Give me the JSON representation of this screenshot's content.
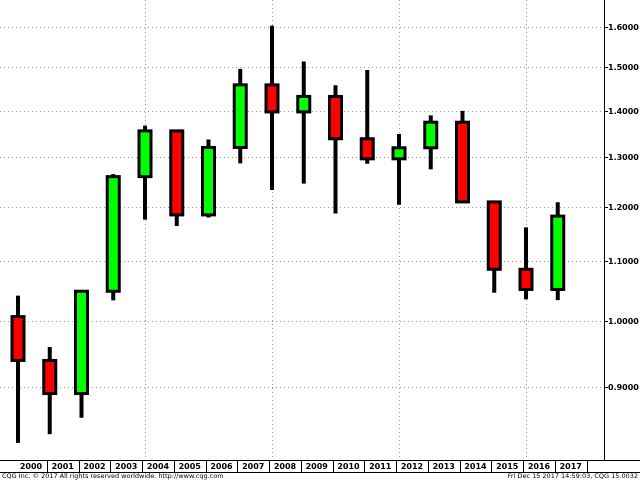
{
  "chart_data": {
    "type": "candlestick",
    "categories": [
      "2000",
      "2001",
      "2002",
      "2003",
      "2004",
      "2005",
      "2006",
      "2007",
      "2008",
      "2009",
      "2010",
      "2011",
      "2012",
      "2013",
      "2014",
      "2015",
      "2016",
      "2017"
    ],
    "open": [
      1.007,
      0.9388,
      0.8904,
      1.0487,
      1.2597,
      1.3554,
      1.1849,
      1.3199,
      1.4589,
      1.3971,
      1.4321,
      1.3384,
      1.2961,
      1.3192,
      1.3743,
      1.2098,
      1.0862,
      1.0517
    ],
    "high": [
      1.0414,
      0.9593,
      1.0486,
      1.2648,
      1.3667,
      1.3583,
      1.3367,
      1.4967,
      1.6038,
      1.5145,
      1.4579,
      1.494,
      1.3487,
      1.3895,
      1.3995,
      1.2105,
      1.1616,
      1.2092
    ],
    "low": [
      0.8228,
      0.8344,
      0.8565,
      1.0335,
      1.176,
      1.164,
      1.18,
      1.2868,
      1.233,
      1.2457,
      1.1876,
      1.286,
      1.2042,
      1.2745,
      1.2099,
      1.0462,
      1.0352,
      1.034
    ],
    "close": [
      0.9388,
      0.8904,
      1.0487,
      1.2597,
      1.3554,
      1.1849,
      1.3199,
      1.4589,
      1.3971,
      1.4321,
      1.3384,
      1.2961,
      1.3192,
      1.3743,
      1.2098,
      1.0862,
      1.0517,
      1.1826
    ],
    "up_color": "#00ff00",
    "down_color": "#ff0000",
    "ylim": [
      0.8006,
      1.671
    ],
    "log_y": true,
    "grid": true,
    "yticks": [
      {
        "value": 0.9,
        "label": "0.9000"
      },
      {
        "value": 1.0,
        "label": "1.0000"
      },
      {
        "value": 1.1,
        "label": "1.1000"
      },
      {
        "value": 1.2,
        "label": "1.2000"
      },
      {
        "value": 1.3,
        "label": "1.3000"
      },
      {
        "value": 1.4,
        "label": "1.4000"
      },
      {
        "value": 1.5,
        "label": "1.5000"
      },
      {
        "value": 1.6,
        "label": "1.6000"
      }
    ],
    "annotations": [
      "CQG Inc. © 2017 All rights reserved worldwide. http://www.cqg.com",
      "Fri Dec 15 2017 14:59:03, CQG 15.0032"
    ]
  }
}
